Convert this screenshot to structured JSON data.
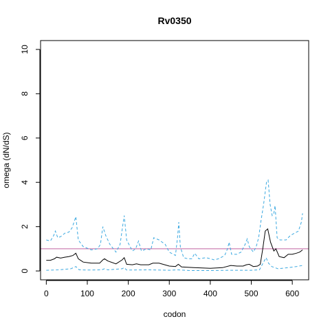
{
  "chart_data": {
    "type": "line",
    "title": "Rv0350",
    "xlabel": "codon",
    "ylabel": "omega (dN/dS)",
    "xlim": [
      -14,
      640
    ],
    "ylim": [
      -0.4,
      10.4
    ],
    "x_ticks": [
      0,
      100,
      200,
      300,
      400,
      500,
      600
    ],
    "y_ticks": [
      0,
      2,
      4,
      6,
      8,
      10
    ],
    "reference_line": {
      "y": 1,
      "color": "#c060a0"
    },
    "series": [
      {
        "style": "solid",
        "color": "#000000",
        "points": [
          [
            0,
            0.48
          ],
          [
            10,
            0.48
          ],
          [
            20,
            0.55
          ],
          [
            25,
            0.62
          ],
          [
            35,
            0.58
          ],
          [
            45,
            0.62
          ],
          [
            55,
            0.65
          ],
          [
            65,
            0.7
          ],
          [
            72,
            0.8
          ],
          [
            78,
            0.55
          ],
          [
            90,
            0.4
          ],
          [
            110,
            0.35
          ],
          [
            130,
            0.35
          ],
          [
            138,
            0.5
          ],
          [
            142,
            0.55
          ],
          [
            150,
            0.45
          ],
          [
            170,
            0.32
          ],
          [
            185,
            0.5
          ],
          [
            190,
            0.6
          ],
          [
            196,
            0.3
          ],
          [
            210,
            0.28
          ],
          [
            220,
            0.32
          ],
          [
            230,
            0.28
          ],
          [
            250,
            0.28
          ],
          [
            260,
            0.35
          ],
          [
            275,
            0.35
          ],
          [
            300,
            0.22
          ],
          [
            315,
            0.2
          ],
          [
            322,
            0.3
          ],
          [
            330,
            0.18
          ],
          [
            360,
            0.15
          ],
          [
            400,
            0.12
          ],
          [
            430,
            0.15
          ],
          [
            450,
            0.25
          ],
          [
            465,
            0.22
          ],
          [
            480,
            0.22
          ],
          [
            488,
            0.28
          ],
          [
            495,
            0.3
          ],
          [
            505,
            0.2
          ],
          [
            515,
            0.22
          ],
          [
            522,
            0.3
          ],
          [
            528,
            1.0
          ],
          [
            534,
            1.8
          ],
          [
            540,
            1.9
          ],
          [
            547,
            1.3
          ],
          [
            555,
            0.9
          ],
          [
            560,
            1.0
          ],
          [
            568,
            0.65
          ],
          [
            580,
            0.6
          ],
          [
            590,
            0.75
          ],
          [
            600,
            0.75
          ],
          [
            610,
            0.8
          ],
          [
            618,
            0.85
          ],
          [
            625,
            0.95
          ]
        ]
      },
      {
        "style": "dashed",
        "color": "#3aa8e0",
        "points": [
          [
            0,
            1.4
          ],
          [
            10,
            1.35
          ],
          [
            18,
            1.6
          ],
          [
            22,
            1.8
          ],
          [
            28,
            1.5
          ],
          [
            35,
            1.55
          ],
          [
            45,
            1.7
          ],
          [
            55,
            1.75
          ],
          [
            63,
            1.95
          ],
          [
            72,
            2.45
          ],
          [
            78,
            1.4
          ],
          [
            90,
            1.1
          ],
          [
            110,
            0.95
          ],
          [
            125,
            1.0
          ],
          [
            132,
            1.2
          ],
          [
            138,
            2.0
          ],
          [
            145,
            1.6
          ],
          [
            155,
            1.2
          ],
          [
            170,
            0.85
          ],
          [
            180,
            1.2
          ],
          [
            186,
            2.0
          ],
          [
            190,
            2.5
          ],
          [
            196,
            1.4
          ],
          [
            210,
            0.9
          ],
          [
            218,
            1.0
          ],
          [
            225,
            1.35
          ],
          [
            232,
            0.9
          ],
          [
            245,
            1.0
          ],
          [
            255,
            0.95
          ],
          [
            262,
            1.5
          ],
          [
            275,
            1.4
          ],
          [
            290,
            1.2
          ],
          [
            300,
            0.85
          ],
          [
            315,
            0.7
          ],
          [
            320,
            1.5
          ],
          [
            323,
            2.2
          ],
          [
            327,
            1.1
          ],
          [
            335,
            0.6
          ],
          [
            345,
            0.55
          ],
          [
            355,
            0.55
          ],
          [
            362,
            0.8
          ],
          [
            372,
            0.55
          ],
          [
            390,
            0.6
          ],
          [
            410,
            0.5
          ],
          [
            420,
            0.55
          ],
          [
            435,
            0.7
          ],
          [
            442,
            1.0
          ],
          [
            446,
            1.3
          ],
          [
            452,
            0.75
          ],
          [
            465,
            0.75
          ],
          [
            475,
            0.85
          ],
          [
            485,
            1.2
          ],
          [
            490,
            1.45
          ],
          [
            495,
            1.1
          ],
          [
            505,
            0.85
          ],
          [
            512,
            1.1
          ],
          [
            518,
            1.5
          ],
          [
            524,
            2.3
          ],
          [
            530,
            3.0
          ],
          [
            537,
            4.0
          ],
          [
            541,
            4.1
          ],
          [
            546,
            3.0
          ],
          [
            551,
            2.5
          ],
          [
            555,
            2.6
          ],
          [
            558,
            2.95
          ],
          [
            563,
            1.5
          ],
          [
            570,
            1.4
          ],
          [
            585,
            1.4
          ],
          [
            595,
            1.6
          ],
          [
            605,
            1.7
          ],
          [
            615,
            1.8
          ],
          [
            622,
            2.2
          ],
          [
            625,
            2.6
          ]
        ]
      },
      {
        "style": "dashed",
        "color": "#3aa8e0",
        "points": [
          [
            0,
            0.03
          ],
          [
            30,
            0.05
          ],
          [
            60,
            0.1
          ],
          [
            72,
            0.2
          ],
          [
            80,
            0.05
          ],
          [
            100,
            0.04
          ],
          [
            135,
            0.05
          ],
          [
            142,
            0.1
          ],
          [
            150,
            0.05
          ],
          [
            185,
            0.1
          ],
          [
            190,
            0.15
          ],
          [
            196,
            0.04
          ],
          [
            250,
            0.05
          ],
          [
            300,
            0.03
          ],
          [
            320,
            0.05
          ],
          [
            350,
            0.02
          ],
          [
            400,
            0.02
          ],
          [
            450,
            0.03
          ],
          [
            500,
            0.03
          ],
          [
            520,
            0.05
          ],
          [
            530,
            0.4
          ],
          [
            536,
            0.6
          ],
          [
            542,
            0.35
          ],
          [
            550,
            0.2
          ],
          [
            565,
            0.1
          ],
          [
            590,
            0.15
          ],
          [
            610,
            0.2
          ],
          [
            625,
            0.25
          ]
        ]
      }
    ]
  }
}
